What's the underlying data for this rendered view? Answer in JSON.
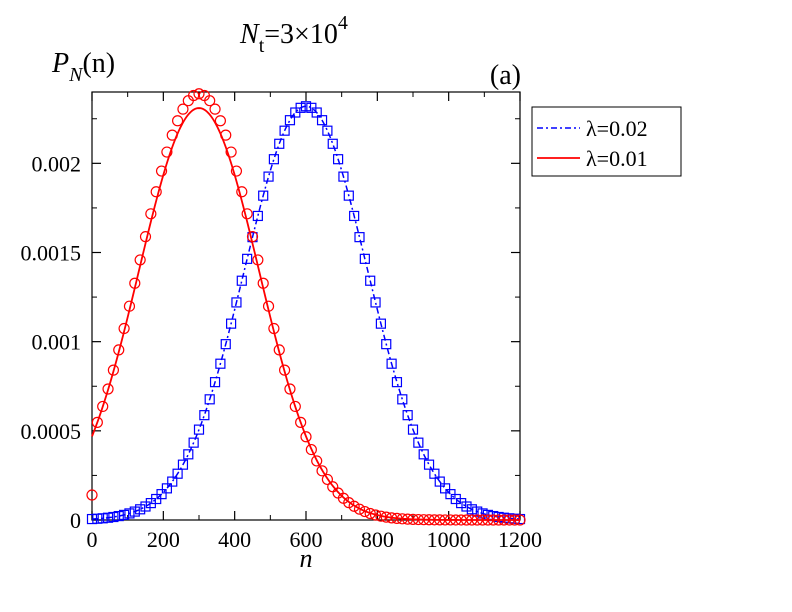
{
  "chart_data": {
    "type": "line",
    "title": {
      "symbol": "N",
      "subscript": "t",
      "value": "=3×10",
      "exponent": "4"
    },
    "panel_label": "(a)",
    "ylabel": {
      "symbol": "P",
      "subscript": "N",
      "arg": "(n)"
    },
    "xlabel": "n",
    "xlim": [
      0,
      1200
    ],
    "ylim": [
      0,
      0.0024
    ],
    "x_ticks": [
      0,
      200,
      400,
      600,
      800,
      1000,
      1200
    ],
    "x_tick_labels": [
      "0",
      "200",
      "400",
      "600",
      "800",
      "1000",
      "1200"
    ],
    "y_ticks": [
      0,
      0.0005,
      0.001,
      0.0015,
      0.002
    ],
    "y_tick_labels": [
      "0",
      "0.0005",
      "0.001",
      "0.0015",
      "0.002"
    ],
    "legend_position": "outside-top-right",
    "series": [
      {
        "name": "λ=0.02",
        "legend_label": "λ=0.02",
        "color": "#0000ff",
        "line_style": "dash-dot",
        "marker": "square",
        "curve_model": {
          "kind": "gaussian",
          "peak": 0.00232,
          "mean": 600,
          "sd": 172
        },
        "marker_x_step": 15,
        "marker_x_range": [
          0,
          1200
        ]
      },
      {
        "name": "λ=0.01",
        "legend_label": "λ=0.01",
        "color": "#ff0000",
        "line_style": "solid",
        "marker": "circle",
        "curve_model": {
          "kind": "gaussian",
          "peak": 0.00231,
          "mean": 300,
          "sd": 168
        },
        "marker_model": {
          "kind": "gaussian",
          "peak": 0.00239,
          "mean": 300,
          "sd": 166
        },
        "marker_x_step": 15,
        "marker_x_range": [
          0,
          1200
        ],
        "extra_marker": {
          "x": 0,
          "y": 0.00014
        }
      }
    ]
  }
}
